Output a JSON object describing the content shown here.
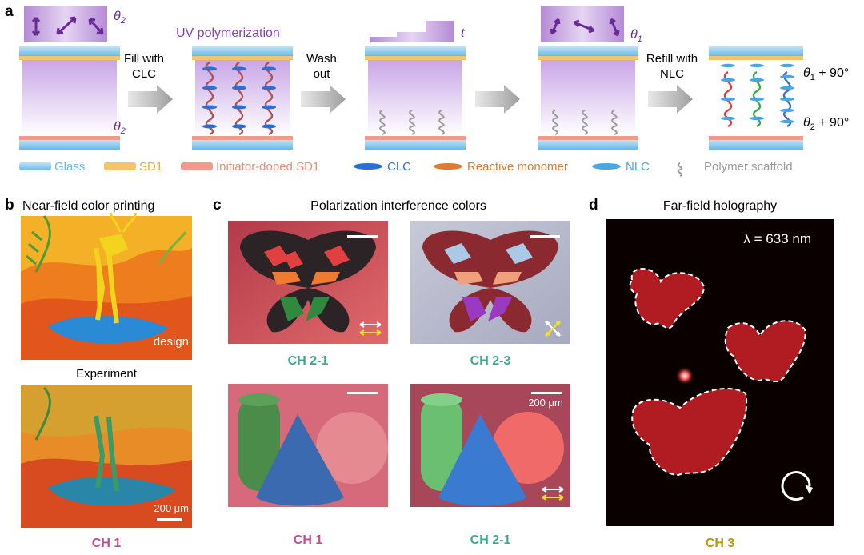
{
  "panel_a": {
    "letter": "a",
    "theta2_top": "θ",
    "theta2_top_sub": "2",
    "theta2_bottom": "θ",
    "theta2_bottom_sub": "2",
    "uv_label": "UV polymerization",
    "t_label": "t",
    "theta1_top": "θ",
    "theta1_top_sub": "1",
    "step_fill": [
      "Fill with",
      "CLC"
    ],
    "step_wash": [
      "Wash",
      "out"
    ],
    "step_refill": [
      "Refill with",
      "NLC"
    ],
    "theta1_plus": "θ",
    "theta1_plus_sub": "1",
    "theta1_plus_rest": " + 90°",
    "theta2_plus": "θ",
    "theta2_plus_sub": "2",
    "theta2_plus_rest": " + 90°",
    "legend": [
      {
        "label": "Glass",
        "color": "#6cb8e8",
        "text_color": "#6cb8e8"
      },
      {
        "label": "SD1",
        "color": "#f3c46a",
        "text_color": "#e9a93a"
      },
      {
        "label": "Initiator-doped SD1",
        "color": "#f29b8c",
        "text_color": "#ef8a7a"
      },
      {
        "label": "CLC",
        "color": "#2a6fd6",
        "text_color": "#2a6fd6"
      },
      {
        "label": "Reactive monomer",
        "color": "#e07a2e",
        "text_color": "#e07a2e"
      },
      {
        "label": "NLC",
        "color": "#47a7e3",
        "text_color": "#47a7e3"
      },
      {
        "label": "Polymer scaffold",
        "color": "#9a9a9a",
        "text_color": "#9a9a9a"
      }
    ]
  },
  "panel_b": {
    "letter": "b",
    "title": "Near-field color printing",
    "design_label": "design",
    "experiment_label": "Experiment",
    "scalebar": "200 μm",
    "channel": "CH 1"
  },
  "panel_c": {
    "letter": "c",
    "title": "Polarization interference colors",
    "channels": [
      "CH 2-1",
      "CH 2-3",
      "CH 1",
      "CH 2-1"
    ],
    "scalebar": "200 μm"
  },
  "panel_d": {
    "letter": "d",
    "title": "Far-field holography",
    "lambda": "λ = 633 nm",
    "channel": "CH 3"
  },
  "colors": {
    "purple": "#8a3fb0",
    "teal": "#3aaa8a",
    "pink": "#c44a9a",
    "gold": "#b8960e"
  }
}
